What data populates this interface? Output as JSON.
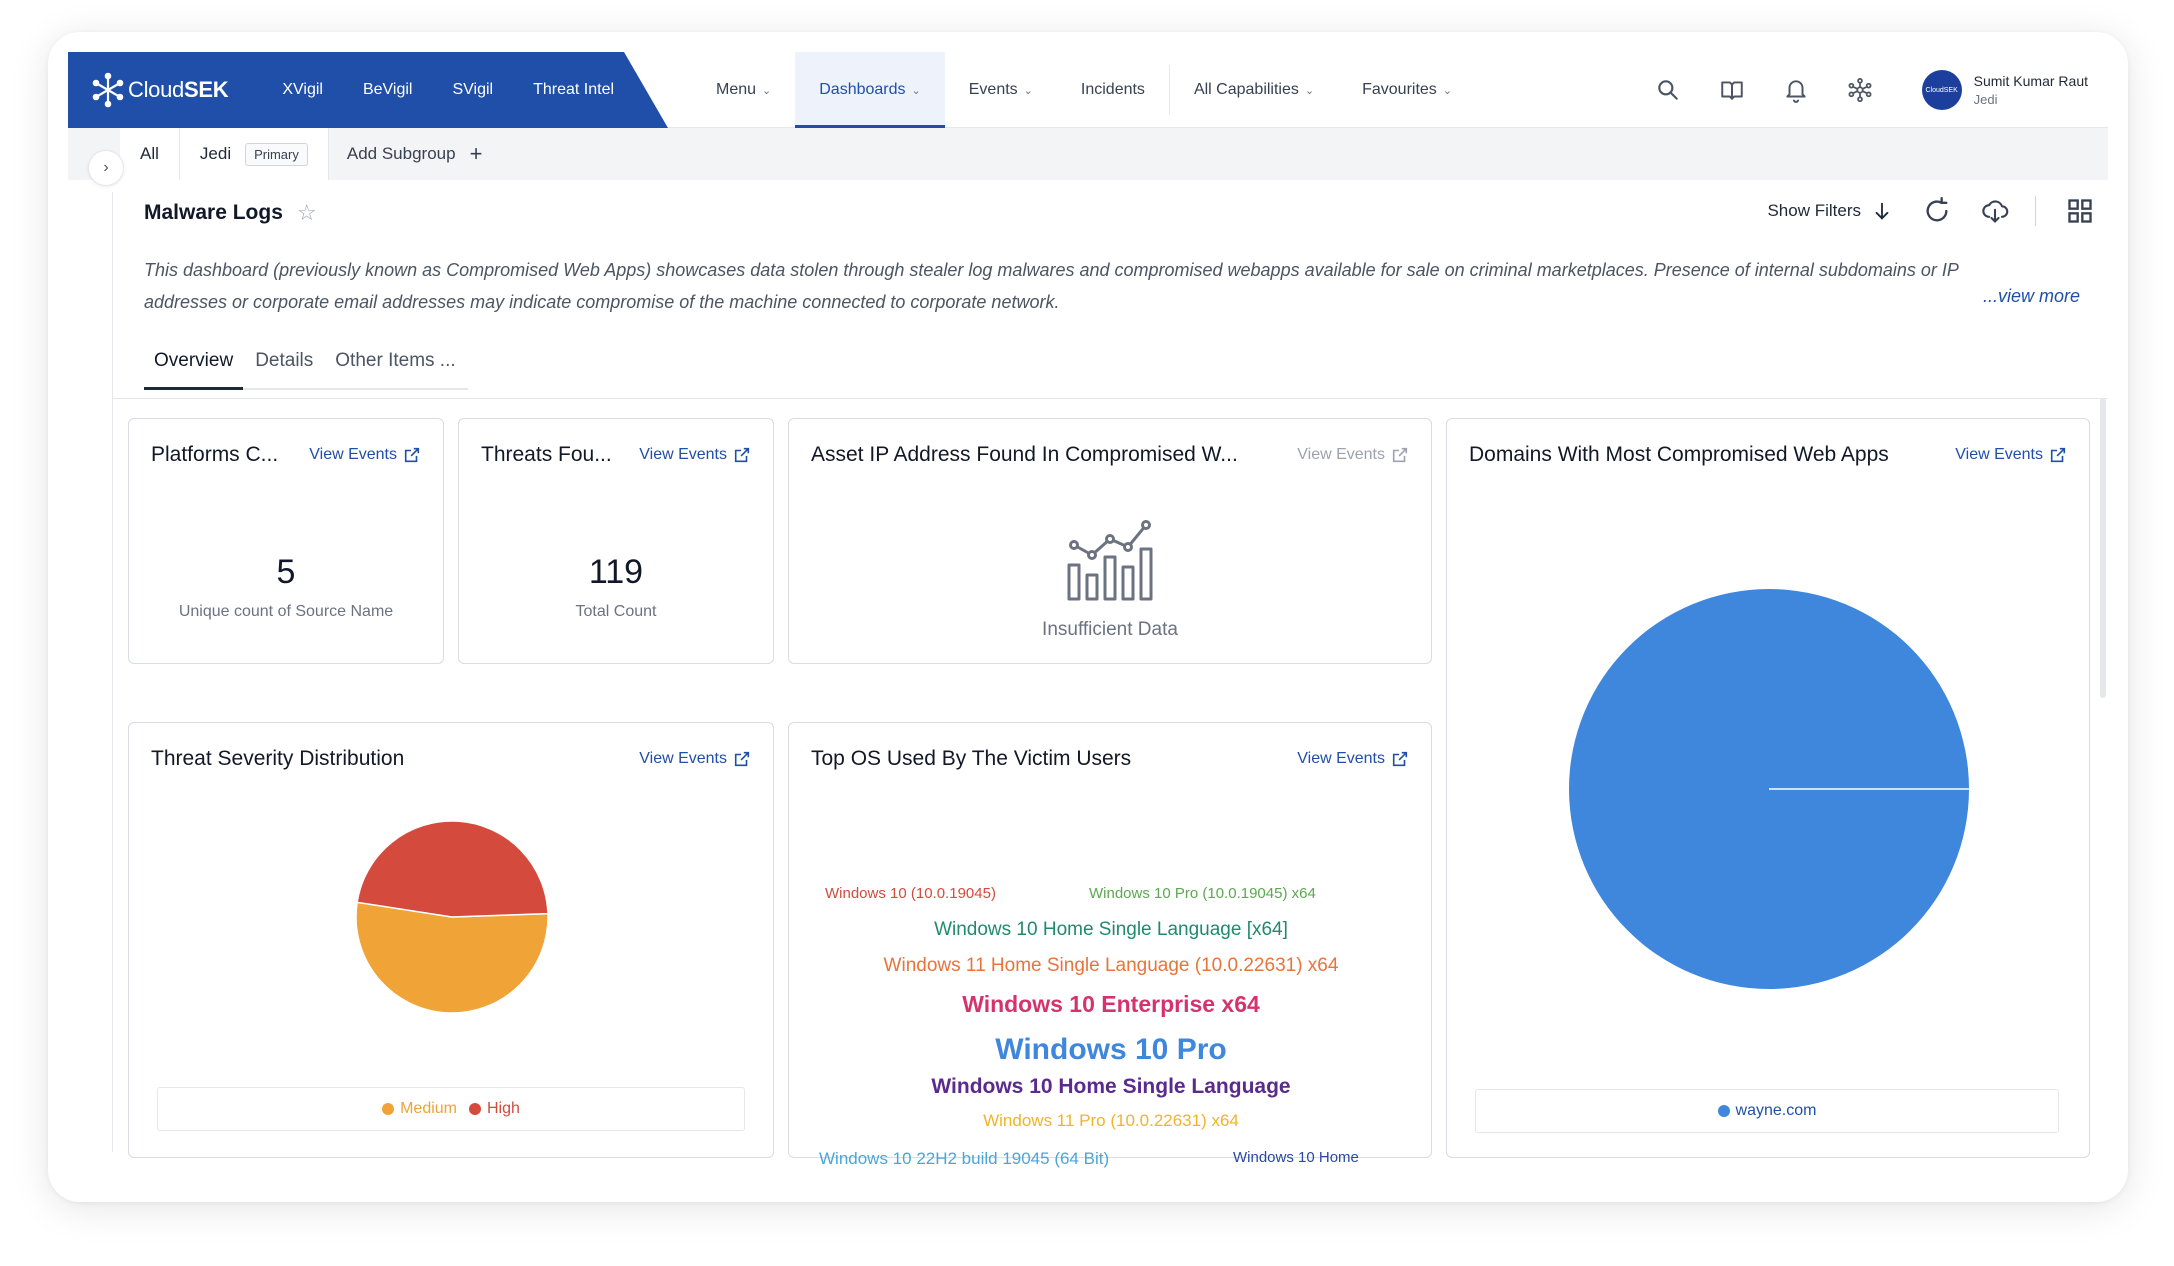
{
  "brand": {
    "logo_bold": "Cloud",
    "logo_rest": "SEK",
    "links": [
      "XVigil",
      "BeVigil",
      "SVigil",
      "Threat Intel"
    ]
  },
  "nav": {
    "items": [
      {
        "label": "Menu",
        "dropdown": true
      },
      {
        "label": "Dashboards",
        "dropdown": true,
        "active": true
      },
      {
        "label": "Events",
        "dropdown": true
      },
      {
        "label": "Incidents",
        "dropdown": false
      },
      {
        "label": "All Capabilities",
        "dropdown": true
      },
      {
        "label": "Favourites",
        "dropdown": true
      }
    ]
  },
  "user": {
    "name": "Sumit Kumar Raut",
    "org": "Jedi",
    "avatar_text": "CloudSEK"
  },
  "subgroups": {
    "all": "All",
    "current": "Jedi",
    "badge": "Primary",
    "add": "Add Subgroup"
  },
  "dashboard": {
    "title": "Malware Logs",
    "show_filters": "Show Filters",
    "description": "This dashboard (previously known as Compromised Web Apps) showcases data stolen through stealer log malwares and compromised webapps available for sale on criminal marketplaces. Presence of internal subdomains or IP addresses or corporate email addresses may indicate compromise of the machine connected to corporate network.",
    "view_more": "...view more",
    "tabs": [
      "Overview",
      "Details",
      "Other Items ..."
    ]
  },
  "view_events_label": "View Events",
  "cards": {
    "platforms": {
      "title": "Platforms C...",
      "value": "5",
      "label": "Unique count of Source Name"
    },
    "threats": {
      "title": "Threats Fou...",
      "value": "119",
      "label": "Total Count"
    },
    "asset_ip": {
      "title": "Asset IP Address Found In Compromised W...",
      "message": "Insufficient Data"
    },
    "domains": {
      "title": "Domains With Most Compromised Web Apps"
    },
    "severity": {
      "title": "Threat Severity Distribution"
    },
    "top_os": {
      "title": "Top OS Used By The Victim Users"
    }
  },
  "colors": {
    "brand": "#1f4fa8",
    "medium": "#f0a336",
    "high": "#d44a3c",
    "domain": "#3f87dc"
  },
  "chart_data": [
    {
      "type": "pie",
      "title": "Threat Severity Distribution",
      "slices": [
        {
          "label": "Medium",
          "value": 53,
          "color": "#f0a336"
        },
        {
          "label": "High",
          "value": 47,
          "color": "#d44a3c"
        }
      ]
    },
    {
      "type": "pie",
      "title": "Domains With Most Compromised Web Apps",
      "slices": [
        {
          "label": "wayne.com",
          "value": 100,
          "color": "#3f87dc"
        }
      ]
    },
    {
      "type": "wordcloud",
      "title": "Top OS Used By The Victim Users",
      "words": [
        {
          "text": "Windows 10 (10.0.19045)",
          "color": "#d44a3c",
          "weight": 1
        },
        {
          "text": "Windows 10 Pro (10.0.19045) x64",
          "color": "#5aa84f",
          "weight": 1
        },
        {
          "text": "Windows 10 Home Single Language [x64]",
          "color": "#1f8a6e",
          "weight": 2
        },
        {
          "text": "Windows 11 Home Single Language (10.0.22631) x64",
          "color": "#e8743b",
          "weight": 2
        },
        {
          "text": "Windows 10 Enterprise x64",
          "color": "#d6336c",
          "weight": 3
        },
        {
          "text": "Windows 10 Pro",
          "color": "#3f87dc",
          "weight": 4
        },
        {
          "text": "Windows 10 Home Single Language",
          "color": "#5b2a8e",
          "weight": 2.5
        },
        {
          "text": "Windows 11 Pro (10.0.22631) x64",
          "color": "#f0b429",
          "weight": 1.5
        },
        {
          "text": "Windows 10 22H2 build 19045 (64 Bit)",
          "color": "#4aa6d8",
          "weight": 1.5
        },
        {
          "text": "Windows 10 Home",
          "color": "#2a47a6",
          "weight": 1
        }
      ]
    }
  ]
}
